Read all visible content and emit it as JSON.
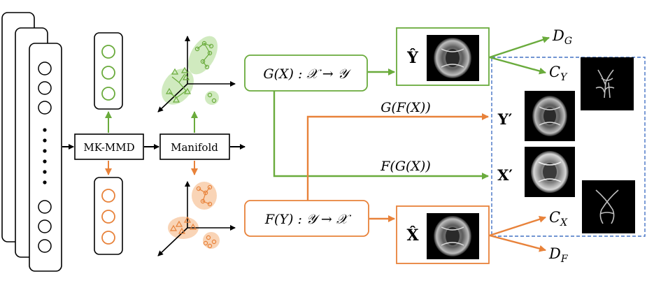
{
  "colors": {
    "green": "#6aab3c",
    "orange": "#e8823a",
    "green_fill": "#c8e6b4",
    "orange_fill": "#f8cfae",
    "dashed_box": "#4472c4",
    "black": "#000000"
  },
  "modules": {
    "mkmmd": "MK-MMD",
    "manifold": "Manifold"
  },
  "generators": {
    "g": "G(X) : 𝒳 → 𝒴",
    "f": "F(Y) : 𝒴 → 𝒳"
  },
  "cycle": {
    "gfx": "G(F(X))",
    "fgx": "F(G(X))"
  },
  "outputs": {
    "y_hat": "Ŷ",
    "x_hat": "X̂",
    "y_prime": "Y′",
    "x_prime": "X′"
  },
  "heads": {
    "dg": "D",
    "dg_sub": "G",
    "cy": "C",
    "cy_sub": "Y",
    "cx": "C",
    "cx_sub": "X",
    "df": "D",
    "df_sub": "F"
  },
  "icons": {
    "mri": "brain-mri-icon",
    "tract": "white-matter-tract-icon",
    "dots": "vertical-ellipsis-icon"
  }
}
